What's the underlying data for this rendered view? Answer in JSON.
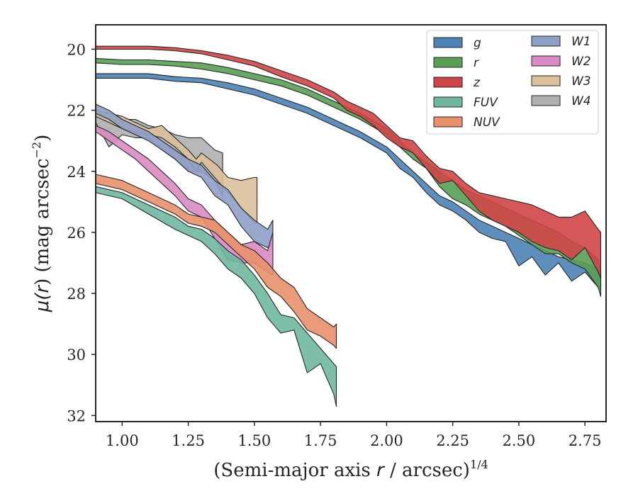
{
  "chart_data": {
    "type": "area",
    "xlabel_main": "(Semi-major axis ",
    "xlabel_var": "r",
    "xlabel_unit": " / arcsec)",
    "xlabel_sup": "1/4",
    "ylabel_main": "μ(",
    "ylabel_var": "r",
    "ylabel_unit": ") (mag arcsec",
    "ylabel_sup": "−2",
    "ylabel_close": ")",
    "xlim": [
      0.9,
      2.83
    ],
    "ylim": [
      32.2,
      19.2
    ],
    "y_inverted": true,
    "xticks": [
      1.0,
      1.25,
      1.5,
      1.75,
      2.0,
      2.25,
      2.5,
      2.75
    ],
    "xtick_labels": [
      "1.00",
      "1.25",
      "1.50",
      "1.75",
      "2.00",
      "2.25",
      "2.50",
      "2.75"
    ],
    "yticks": [
      20,
      22,
      24,
      26,
      28,
      30,
      32
    ],
    "ytick_labels": [
      "20",
      "22",
      "24",
      "26",
      "28",
      "30",
      "32"
    ],
    "grid": false,
    "legend_position": "top-right",
    "legend_columns": 2,
    "series": [
      {
        "name": "W4",
        "color": "#b0b0b0",
        "x": [
          0.9,
          0.95,
          1.0,
          1.05,
          1.1,
          1.15,
          1.2,
          1.25,
          1.3,
          1.35,
          1.38
        ],
        "lower": [
          22.2,
          22.1,
          22.3,
          22.3,
          22.5,
          22.6,
          22.8,
          22.9,
          22.9,
          23.3,
          23.4
        ],
        "upper": [
          22.4,
          23.2,
          22.8,
          22.9,
          22.9,
          23.3,
          23.6,
          24.0,
          24.0,
          24.3,
          24.8
        ]
      },
      {
        "name": "W3",
        "color": "#dcc09a",
        "x": [
          0.9,
          1.0,
          1.05,
          1.1,
          1.15,
          1.2,
          1.25,
          1.28,
          1.3,
          1.33,
          1.36,
          1.4,
          1.45,
          1.5,
          1.51
        ],
        "lower": [
          22.0,
          22.2,
          22.4,
          22.6,
          22.5,
          22.9,
          23.3,
          23.6,
          23.4,
          23.6,
          23.8,
          24.2,
          24.3,
          24.2,
          24.2
        ],
        "upper": [
          22.2,
          22.6,
          22.7,
          22.8,
          22.9,
          23.2,
          23.6,
          24.0,
          23.7,
          24.0,
          24.3,
          24.7,
          25.2,
          25.7,
          25.7
        ]
      },
      {
        "name": "W1",
        "color": "#8e9fc6",
        "x": [
          0.9,
          0.95,
          1.0,
          1.05,
          1.1,
          1.15,
          1.2,
          1.25,
          1.3,
          1.35,
          1.4,
          1.45,
          1.5,
          1.55,
          1.57
        ],
        "lower": [
          21.8,
          22.0,
          22.3,
          22.5,
          22.7,
          23.0,
          23.3,
          23.6,
          23.8,
          24.3,
          24.6,
          25.2,
          25.6,
          25.9,
          25.6
        ],
        "upper": [
          22.1,
          22.3,
          22.6,
          22.8,
          23.0,
          23.3,
          23.6,
          24.0,
          24.2,
          24.8,
          25.1,
          25.8,
          26.3,
          26.5,
          26.4
        ]
      },
      {
        "name": "W2",
        "color": "#da8bc3",
        "x": [
          0.9,
          0.95,
          1.0,
          1.05,
          1.1,
          1.15,
          1.2,
          1.25,
          1.3,
          1.35,
          1.4,
          1.45,
          1.5,
          1.55,
          1.57
        ],
        "lower": [
          22.5,
          22.7,
          23.0,
          23.3,
          23.6,
          24.0,
          24.4,
          24.9,
          25.1,
          25.6,
          26.0,
          26.4,
          26.3,
          26.6,
          26.0
        ],
        "upper": [
          22.7,
          23.0,
          23.3,
          23.6,
          24.0,
          24.4,
          24.8,
          25.3,
          25.5,
          26.2,
          26.9,
          27.0,
          27.0,
          27.3,
          27.4
        ]
      },
      {
        "name": "NUV",
        "color": "#e8906c",
        "x": [
          0.9,
          1.0,
          1.1,
          1.2,
          1.25,
          1.3,
          1.35,
          1.4,
          1.45,
          1.5,
          1.55,
          1.6,
          1.65,
          1.7,
          1.75,
          1.8,
          1.81
        ],
        "lower": [
          24.1,
          24.3,
          24.7,
          25.1,
          25.4,
          25.5,
          25.6,
          26.0,
          26.4,
          26.6,
          27.0,
          27.5,
          27.8,
          28.5,
          28.8,
          29.1,
          29.0
        ],
        "upper": [
          24.4,
          24.6,
          25.0,
          25.4,
          25.7,
          25.8,
          26.0,
          26.4,
          26.8,
          27.2,
          27.8,
          28.1,
          28.6,
          29.2,
          29.4,
          29.7,
          29.8
        ]
      },
      {
        "name": "FUV",
        "color": "#6fb89e",
        "x": [
          0.9,
          1.0,
          1.1,
          1.2,
          1.25,
          1.3,
          1.35,
          1.4,
          1.45,
          1.5,
          1.55,
          1.6,
          1.65,
          1.7,
          1.75,
          1.8,
          1.81
        ],
        "lower": [
          24.5,
          24.7,
          25.1,
          25.5,
          25.8,
          25.9,
          26.2,
          26.6,
          26.9,
          27.4,
          28.0,
          28.7,
          28.8,
          29.3,
          29.8,
          30.3,
          30.4
        ],
        "upper": [
          24.7,
          24.9,
          25.4,
          25.9,
          26.1,
          26.3,
          26.7,
          27.2,
          27.5,
          28.0,
          28.8,
          29.3,
          29.2,
          30.6,
          30.3,
          31.3,
          31.7
        ]
      },
      {
        "name": "g",
        "color": "#4d82b5",
        "x": [
          0.9,
          1.0,
          1.1,
          1.2,
          1.3,
          1.4,
          1.5,
          1.6,
          1.7,
          1.8,
          1.9,
          2.0,
          2.05,
          2.1,
          2.15,
          2.2,
          2.25,
          2.3,
          2.35,
          2.4,
          2.45,
          2.5,
          2.55,
          2.6,
          2.65,
          2.7,
          2.75,
          2.8,
          2.81
        ],
        "lower": [
          20.8,
          20.8,
          20.8,
          20.9,
          20.95,
          21.1,
          21.3,
          21.6,
          21.9,
          22.3,
          22.7,
          23.2,
          23.6,
          24.0,
          24.4,
          24.8,
          25.0,
          25.3,
          25.6,
          25.8,
          26.0,
          26.2,
          26.4,
          26.6,
          26.8,
          26.9,
          27.0,
          27.2,
          27.6
        ],
        "upper": [
          20.95,
          20.95,
          20.95,
          21.05,
          21.1,
          21.3,
          21.5,
          21.8,
          22.1,
          22.5,
          22.9,
          23.4,
          23.9,
          24.2,
          24.7,
          25.1,
          25.3,
          25.6,
          26.0,
          26.2,
          26.3,
          27.1,
          26.8,
          27.4,
          27.0,
          27.6,
          27.3,
          27.8,
          27.9
        ]
      },
      {
        "name": "r",
        "color": "#5a9e55",
        "x": [
          0.9,
          1.0,
          1.1,
          1.2,
          1.3,
          1.4,
          1.5,
          1.6,
          1.7,
          1.8,
          1.9,
          2.0,
          2.05,
          2.1,
          2.15,
          2.2,
          2.25,
          2.3,
          2.35,
          2.4,
          2.45,
          2.5,
          2.55,
          2.6,
          2.65,
          2.7,
          2.75,
          2.8,
          2.81
        ],
        "lower": [
          20.3,
          20.35,
          20.35,
          20.4,
          20.45,
          20.6,
          20.8,
          21.0,
          21.3,
          21.7,
          22.1,
          22.6,
          23.0,
          23.4,
          23.7,
          24.0,
          24.3,
          24.6,
          24.8,
          25.0,
          25.2,
          25.4,
          25.6,
          25.8,
          26.0,
          26.3,
          26.5,
          26.9,
          27.3
        ],
        "upper": [
          20.45,
          20.5,
          20.5,
          20.55,
          20.65,
          20.8,
          21.0,
          21.2,
          21.5,
          21.9,
          22.3,
          22.8,
          23.2,
          23.6,
          23.9,
          24.5,
          24.9,
          25.1,
          25.4,
          25.6,
          25.8,
          26.1,
          26.4,
          26.7,
          26.7,
          27.0,
          27.2,
          27.8,
          28.1
        ]
      },
      {
        "name": "z",
        "color": "#d04547",
        "x": [
          0.9,
          1.0,
          1.1,
          1.2,
          1.3,
          1.4,
          1.5,
          1.6,
          1.7,
          1.8,
          1.85,
          1.9,
          1.95,
          2.0,
          2.05,
          2.1,
          2.15,
          2.2,
          2.25,
          2.3,
          2.35,
          2.4,
          2.45,
          2.5,
          2.55,
          2.6,
          2.65,
          2.7,
          2.75,
          2.8,
          2.81
        ],
        "lower": [
          19.9,
          19.9,
          19.9,
          19.95,
          20.05,
          20.2,
          20.4,
          20.7,
          21.0,
          21.4,
          21.7,
          21.9,
          22.1,
          22.5,
          22.9,
          23.0,
          23.5,
          23.9,
          24.0,
          24.4,
          24.7,
          24.8,
          24.9,
          25.0,
          25.1,
          25.3,
          25.5,
          25.5,
          25.3,
          25.9,
          26.0
        ],
        "upper": [
          20.0,
          20.0,
          20.0,
          20.05,
          20.15,
          20.35,
          20.55,
          20.9,
          21.2,
          21.6,
          22.0,
          22.2,
          22.5,
          22.9,
          23.2,
          23.4,
          23.9,
          24.4,
          24.3,
          24.8,
          25.3,
          25.6,
          25.8,
          26.0,
          26.3,
          26.5,
          26.6,
          26.9,
          26.5,
          27.3,
          27.5
        ]
      }
    ],
    "legend": {
      "col1": [
        {
          "label": "g",
          "color": "#4d82b5"
        },
        {
          "label": "r",
          "color": "#5a9e55"
        },
        {
          "label": "z",
          "color": "#d04547"
        },
        {
          "label": "FUV",
          "color": "#6fb89e"
        },
        {
          "label": "NUV",
          "color": "#e8906c"
        }
      ],
      "col2": [
        {
          "label": "W1",
          "color": "#8e9fc6"
        },
        {
          "label": "W2",
          "color": "#da8bc3"
        },
        {
          "label": "W3",
          "color": "#dcc09a"
        },
        {
          "label": "W4",
          "color": "#b0b0b0"
        }
      ]
    }
  }
}
